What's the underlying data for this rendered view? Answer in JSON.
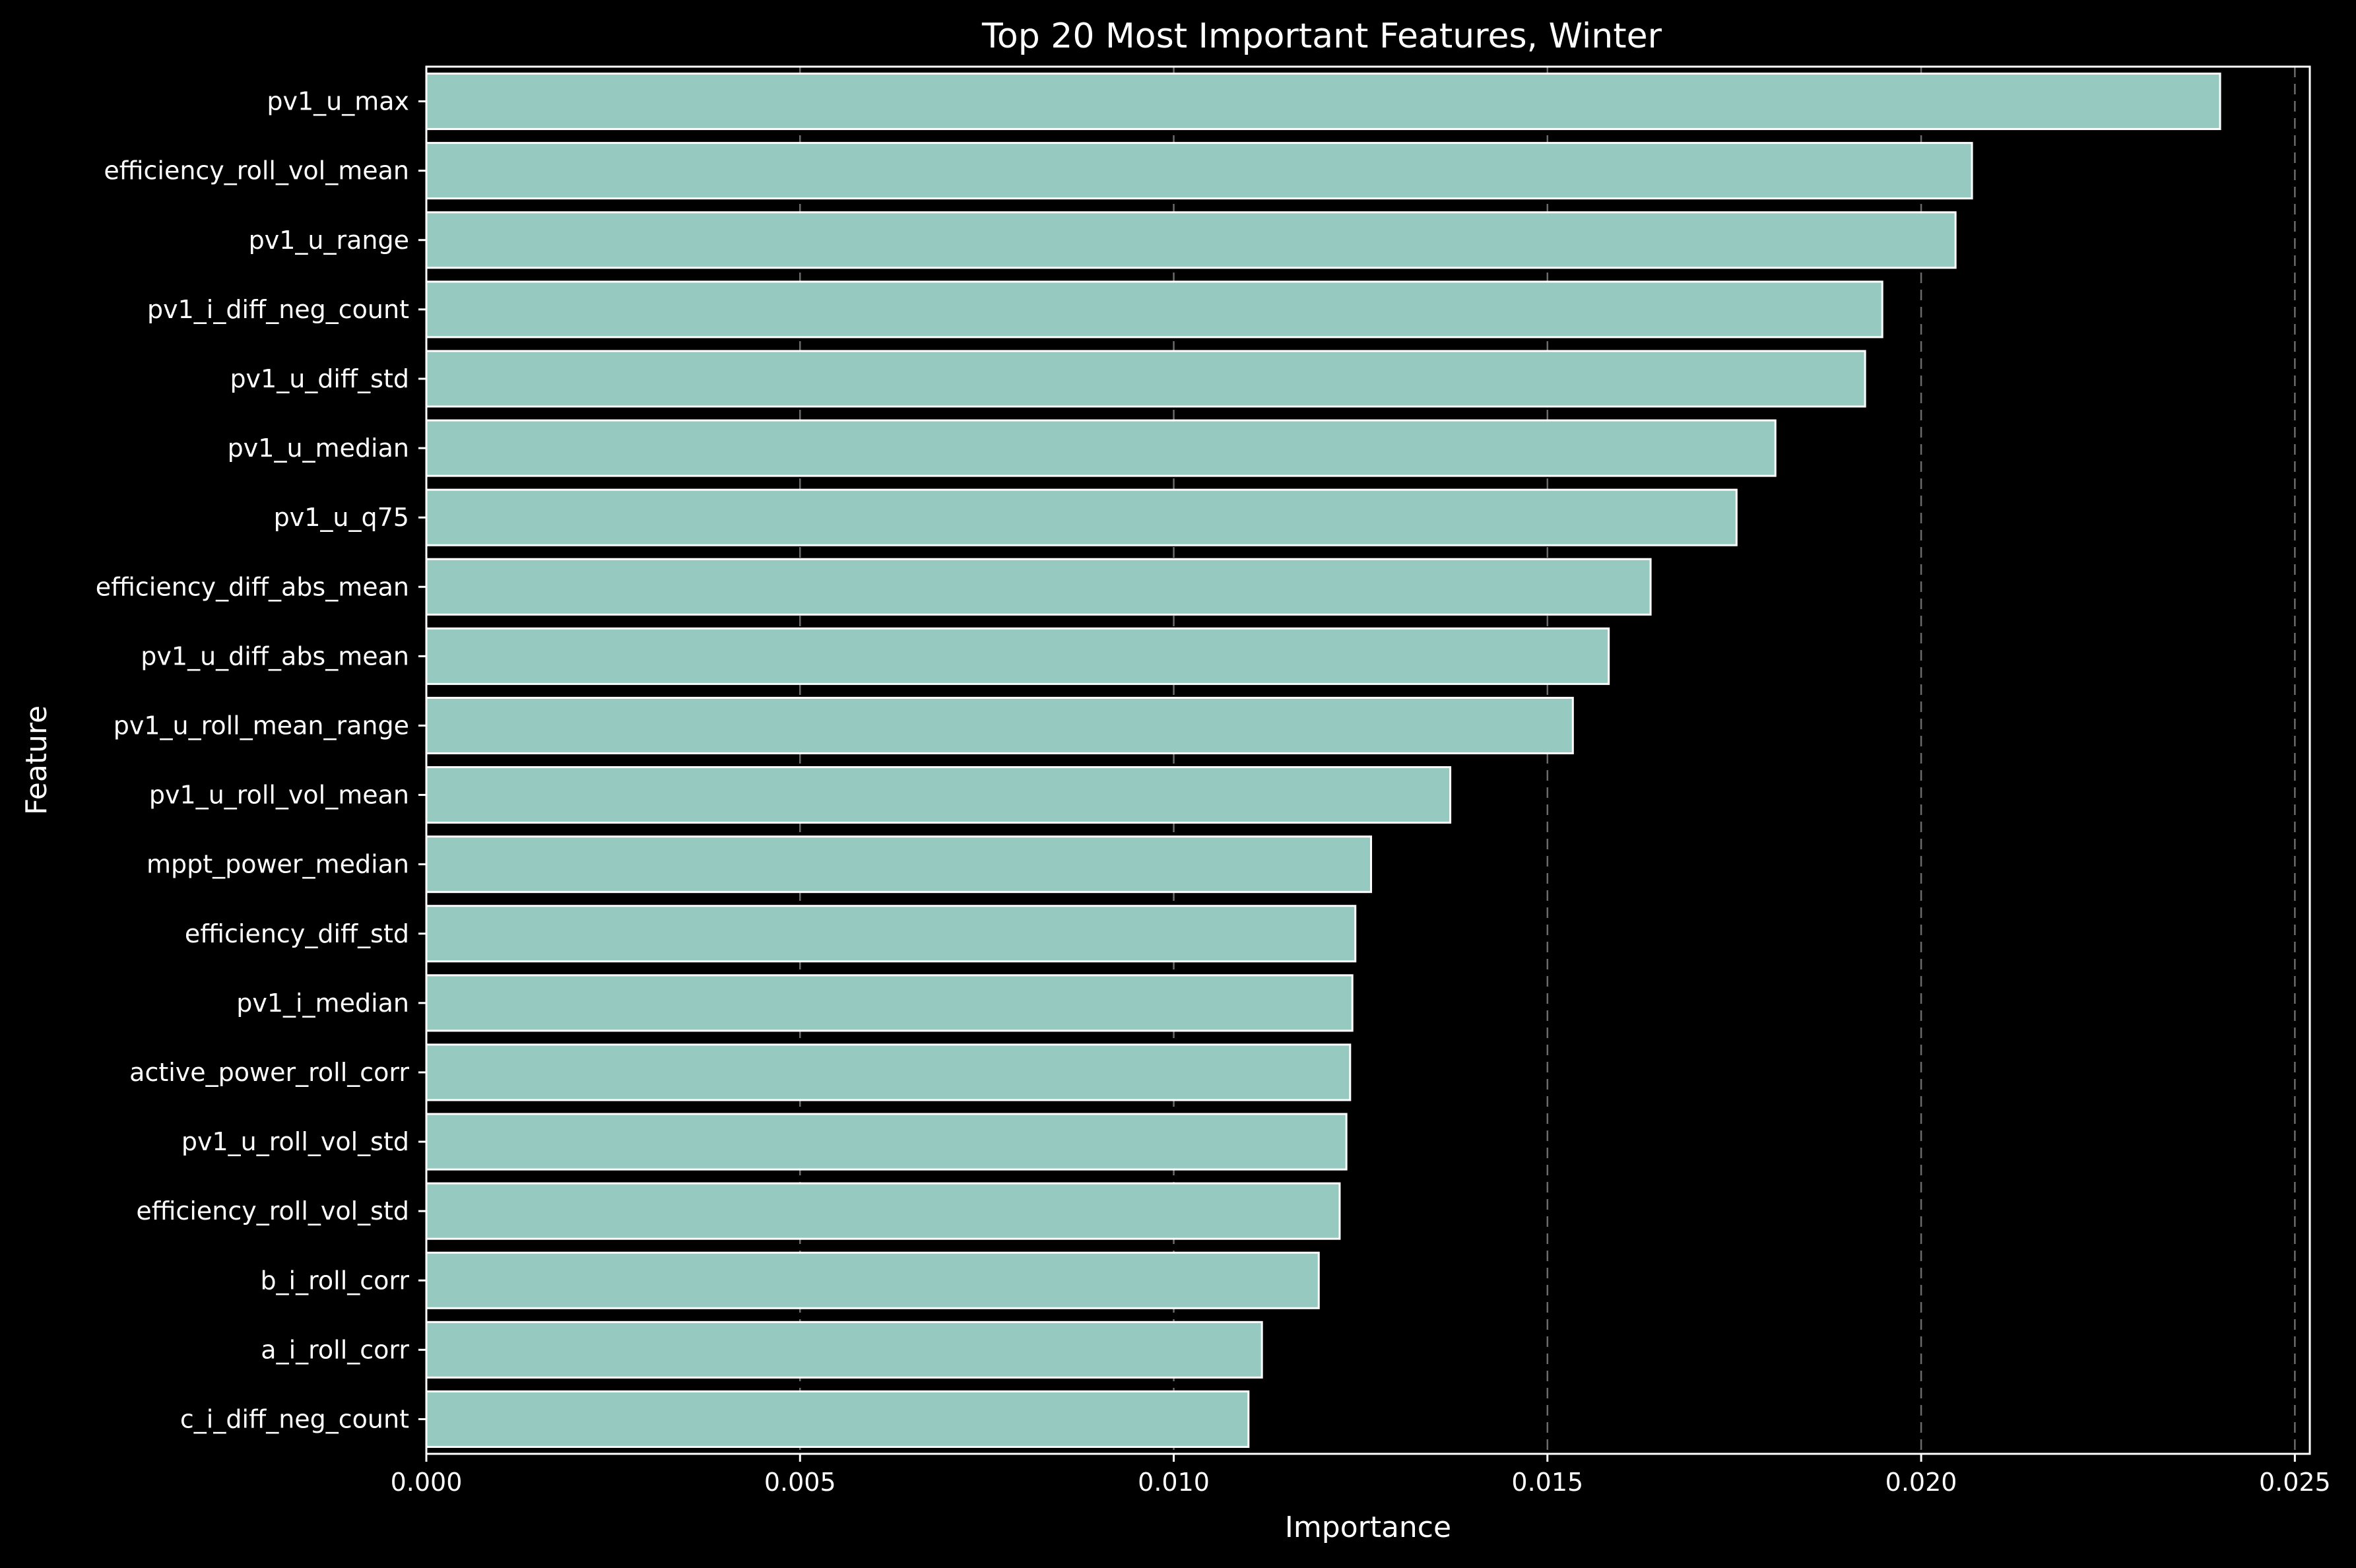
{
  "chart_data": {
    "type": "bar",
    "orientation": "horizontal",
    "title": "Top 20 Most Important Features, Winter",
    "xlabel": "Importance",
    "ylabel": "Feature",
    "xlim": [
      0,
      0.0252
    ],
    "xticks": [
      0.0,
      0.005,
      0.01,
      0.015,
      0.02,
      0.025
    ],
    "xtick_labels": [
      "0.000",
      "0.005",
      "0.010",
      "0.015",
      "0.020",
      "0.025"
    ],
    "grid": "x-dashed",
    "categories": [
      "pv1_u_max",
      "efficiency_roll_vol_mean",
      "pv1_u_range",
      "pv1_i_diff_neg_count",
      "pv1_u_diff_std",
      "pv1_u_median",
      "pv1_u_q75",
      "efficiency_diff_abs_mean",
      "pv1_u_diff_abs_mean",
      "pv1_u_roll_mean_range",
      "pv1_u_roll_vol_mean",
      "mppt_power_median",
      "efficiency_diff_std",
      "pv1_i_median",
      "active_power_roll_corr",
      "pv1_u_roll_vol_std",
      "efficiency_roll_vol_std",
      "b_i_roll_corr",
      "a_i_roll_corr",
      "c_i_diff_neg_count"
    ],
    "values": [
      0.024,
      0.02068,
      0.02046,
      0.01948,
      0.01925,
      0.01805,
      0.01753,
      0.01638,
      0.01582,
      0.01534,
      0.0137,
      0.01264,
      0.01243,
      0.01239,
      0.01236,
      0.01231,
      0.01222,
      0.01194,
      0.01118,
      0.011
    ],
    "colors": {
      "bar": "#96c9c0",
      "bar_edge": "#ffffff",
      "background": "#000000",
      "text": "#ffffff",
      "grid": "#6b6b6b"
    }
  }
}
